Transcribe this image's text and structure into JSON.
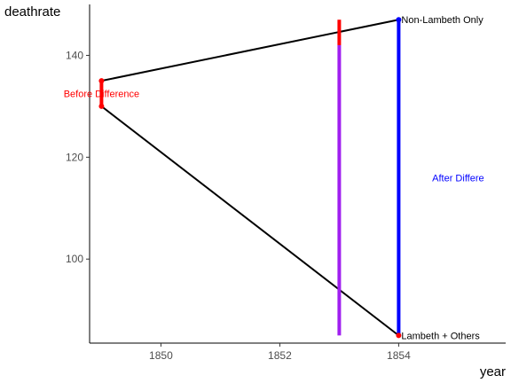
{
  "chart_data": {
    "type": "line",
    "xlabel": "year",
    "ylabel": "deathrate",
    "xlim": [
      1848.8,
      1855.8
    ],
    "ylim": [
      83.5,
      150
    ],
    "x_ticks": [
      {
        "value": 1850,
        "label": "1850"
      },
      {
        "value": 1852,
        "label": "1852"
      },
      {
        "value": 1854,
        "label": "1854"
      }
    ],
    "y_ticks": [
      {
        "value": 100,
        "label": "100"
      },
      {
        "value": 120,
        "label": "120"
      },
      {
        "value": 140,
        "label": "140"
      }
    ],
    "grid": false,
    "legend": "none",
    "series": [
      {
        "points": [
          {
            "x": 1849,
            "y": 135
          },
          {
            "x": 1854,
            "y": 147
          }
        ],
        "color": "#000000"
      },
      {
        "points": [
          {
            "x": 1849,
            "y": 130
          },
          {
            "x": 1854,
            "y": 85
          }
        ],
        "color": "#000000"
      }
    ],
    "points": [
      {
        "x": 1849,
        "y": 135,
        "color": "#ff0000"
      },
      {
        "x": 1849,
        "y": 130,
        "color": "#ff0000"
      },
      {
        "x": 1854,
        "y": 147,
        "color": "#0000ff"
      },
      {
        "x": 1854,
        "y": 85,
        "color": "#ff0000"
      }
    ],
    "segments": [
      {
        "x": 1849,
        "y_start": 130,
        "y_end": 135,
        "color": "#ff0000"
      },
      {
        "x": 1854,
        "y_start": 85,
        "y_end": 147,
        "color": "#0000ff"
      },
      {
        "x": 1853,
        "y_start": 85,
        "y_end": 142,
        "color": "#a020f0"
      },
      {
        "x": 1853,
        "y_start": 142,
        "y_end": 147,
        "color": "#ff0000"
      }
    ],
    "annotations": [
      {
        "text": "Non-Lambeth Only",
        "x": 1854,
        "y": 147,
        "color": "#000000"
      },
      {
        "text": "Lambeth + Others",
        "x": 1854,
        "y": 85,
        "color": "#000000"
      },
      {
        "text": "Before Difference",
        "x": 1849,
        "y": 132.5,
        "color": "#ff0000"
      },
      {
        "text": "After Differe",
        "x": 1855,
        "y": 116,
        "color": "#0000ff"
      }
    ]
  }
}
